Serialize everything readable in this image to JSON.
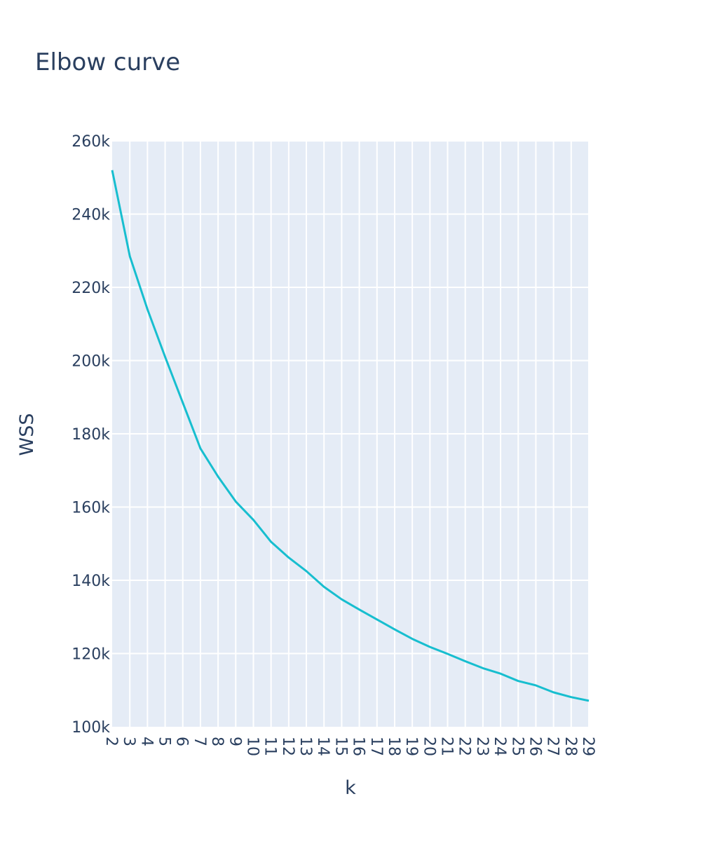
{
  "chart_data": {
    "type": "line",
    "title": "Elbow curve",
    "xlabel": "k",
    "ylabel": "WSS",
    "x": [
      2,
      3,
      4,
      5,
      6,
      7,
      8,
      9,
      10,
      11,
      12,
      13,
      14,
      15,
      16,
      17,
      18,
      19,
      20,
      21,
      22,
      23,
      24,
      25,
      26,
      27,
      28,
      29
    ],
    "series": [
      {
        "values": [
          252000,
          228500,
          214000,
          201000,
          188500,
          176000,
          168300,
          161500,
          156500,
          150500,
          146200,
          142500,
          138200,
          134800,
          132000,
          129300,
          126600,
          124000,
          121800,
          119900,
          117900,
          116000,
          114500,
          112500,
          111300,
          109400,
          108100,
          107100
        ]
      }
    ],
    "xlim": [
      2,
      29
    ],
    "ylim": [
      100000,
      260000
    ],
    "yticks": [
      100000,
      120000,
      140000,
      160000,
      180000,
      200000,
      220000,
      240000,
      260000
    ],
    "ytick_labels": [
      "100k",
      "120k",
      "140k",
      "160k",
      "180k",
      "200k",
      "220k",
      "240k",
      "260k"
    ],
    "xtick_labels": [
      "2",
      "3",
      "4",
      "5",
      "6",
      "7",
      "8",
      "9",
      "10",
      "11",
      "12",
      "13",
      "14",
      "15",
      "16",
      "17",
      "18",
      "19",
      "20",
      "21",
      "22",
      "23",
      "24",
      "25",
      "26",
      "27",
      "28",
      "29"
    ],
    "grid": true,
    "colors": {
      "line": "#17becf",
      "plot_background": "#e5ecf6",
      "grid": "#ffffff",
      "text": "#2a3f5f"
    }
  }
}
